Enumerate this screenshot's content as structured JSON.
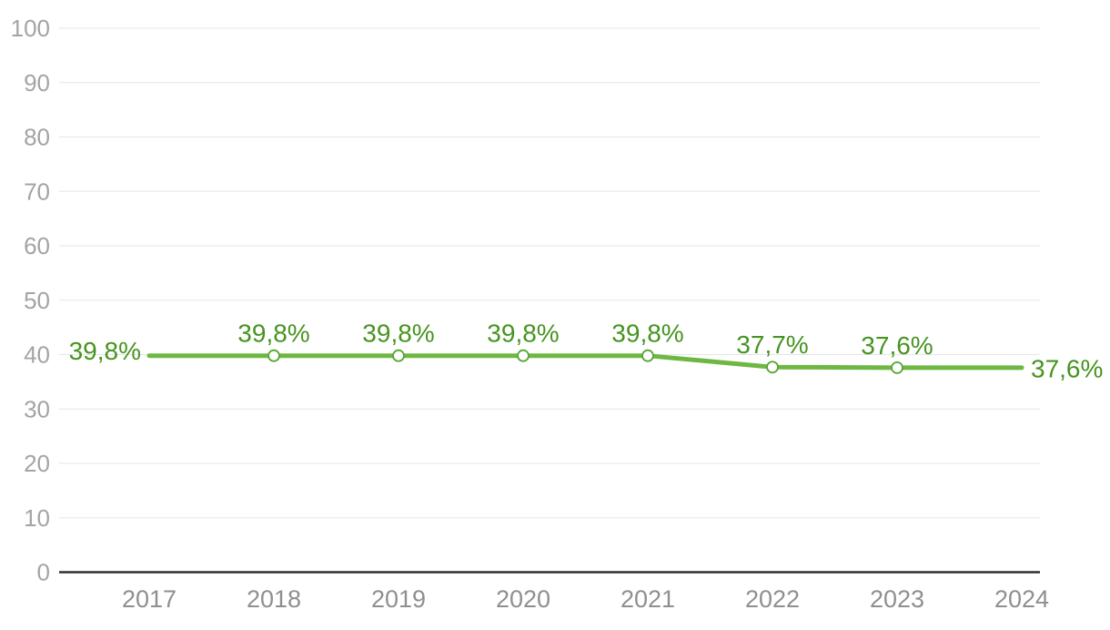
{
  "chart_data": {
    "type": "line",
    "title": "",
    "xlabel": "",
    "ylabel": "",
    "categories": [
      "2017",
      "2018",
      "2019",
      "2020",
      "2021",
      "2022",
      "2023",
      "2024"
    ],
    "series": [
      {
        "name": "share-percent",
        "values": [
          39.8,
          39.8,
          39.8,
          39.8,
          39.8,
          37.7,
          37.6,
          37.6
        ]
      }
    ],
    "value_labels": [
      "39,8%",
      "39,8%",
      "39,8%",
      "39,8%",
      "39,8%",
      "37,7%",
      "37,6%",
      "37,6%"
    ],
    "label_positions": [
      "left",
      "above",
      "above",
      "above",
      "above",
      "above",
      "above",
      "right"
    ],
    "marker_indices": [
      1,
      2,
      3,
      4,
      5,
      6
    ],
    "ylim": [
      0,
      100
    ],
    "yticks": [
      0,
      10,
      20,
      30,
      40,
      50,
      60,
      70,
      80,
      90,
      100
    ],
    "grid": "horizontal",
    "legend": "none"
  },
  "colors": {
    "line": "#6cb843",
    "value_label": "#469420",
    "marker_stroke": "#57a531",
    "marker_fill": "#ffffff",
    "grid": "#e5e5e5",
    "axis": "#2f2f2f",
    "y_tick_label": "#a4a4a4",
    "x_tick_label": "#8f8f8f",
    "background": "#ffffff"
  }
}
